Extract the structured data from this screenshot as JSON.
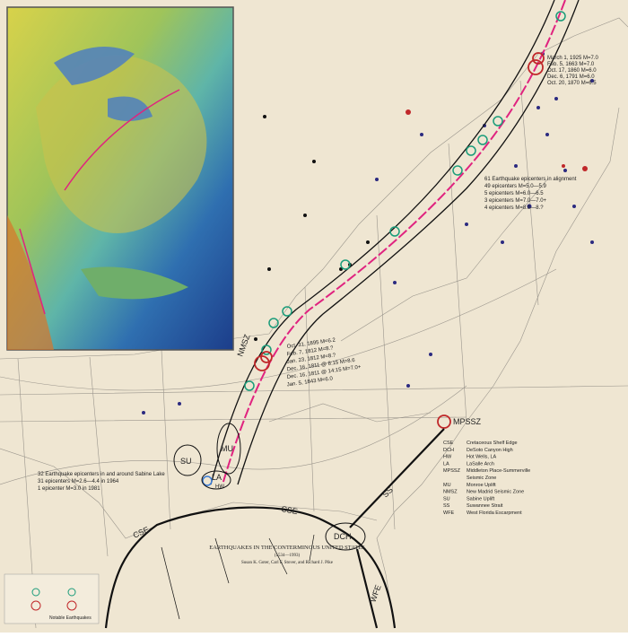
{
  "annotations": {
    "northeast_quakes": [
      "March 1, 1925  M=7.0",
      "Feb. 5, 1663  M=7.0",
      "Oct. 17, 1860  M=6.0",
      "Dec. 6, 1791  M=6.0",
      "Oct. 20, 1870  M=6.5"
    ],
    "alignment": [
      "61 Earthquake epicenters in alignment",
      "49  epicenters  M=5.0—5.9",
      "5  epicenters  M=6.0—6.5",
      "3  epicenters  M=7.0—7.0+",
      "4  epicenters  M=8.0—8.?"
    ],
    "new_madrid_quakes": [
      "Oct. 31, 1895  M=6.2",
      "Feb. 7, 1812  M=8.?",
      "Jan. 23, 1812  M=8.?",
      "Dec. 16, 1811 @ 8:15   M=8.6",
      "Dec. 16, 1811 @ 14:15  M=7.0+",
      "Jan. 5, 1843  M=6.0"
    ],
    "sabine": [
      "32 Earthquake epicenters in and around Sabine Lake",
      "31  epicenters   M=2.6—4.4 in 1964",
      "1   epicenter    M=3.0 in 1981"
    ],
    "features": {
      "nmsz": "NMSZ",
      "mpssz": "MPSSZ",
      "su": "SU",
      "mu": "MU",
      "la": "LA",
      "hw": "HW",
      "cse_west": "CSE",
      "cse_center": "CSE",
      "dch": "DCH",
      "ss": "SS",
      "wfe": "WFE"
    }
  },
  "abbreviations": [
    {
      "abbr": "CSE",
      "name": "Cretaceous Shelf Edge"
    },
    {
      "abbr": "DCH",
      "name": "DeSoto Canyon High"
    },
    {
      "abbr": "HW",
      "name": "Hot Wells, LA"
    },
    {
      "abbr": "LA",
      "name": "LaSalle Arch"
    },
    {
      "abbr": "MPSSZ",
      "name": "Middleton Place-Summerville"
    },
    {
      "abbr": "",
      "name": "Seismic Zone"
    },
    {
      "abbr": "MU",
      "name": "Monroe Uplift"
    },
    {
      "abbr": "NMSZ",
      "name": "New Madrid Seismic Zone"
    },
    {
      "abbr": "SU",
      "name": "Sabine Uplift"
    },
    {
      "abbr": "SS",
      "name": "Suwannee Strait"
    },
    {
      "abbr": "WFE",
      "name": "West Florida Escarpment"
    }
  ],
  "title_block": {
    "title": "EARTHQUAKES IN THE CONTERMINOUS UNITED STATES",
    "period": "(1534—1993)",
    "authors": "Susan K. Goter, Carl F. Stover, and Richard J. Pike"
  },
  "key": {
    "caption": "Notable Earthquakes"
  }
}
